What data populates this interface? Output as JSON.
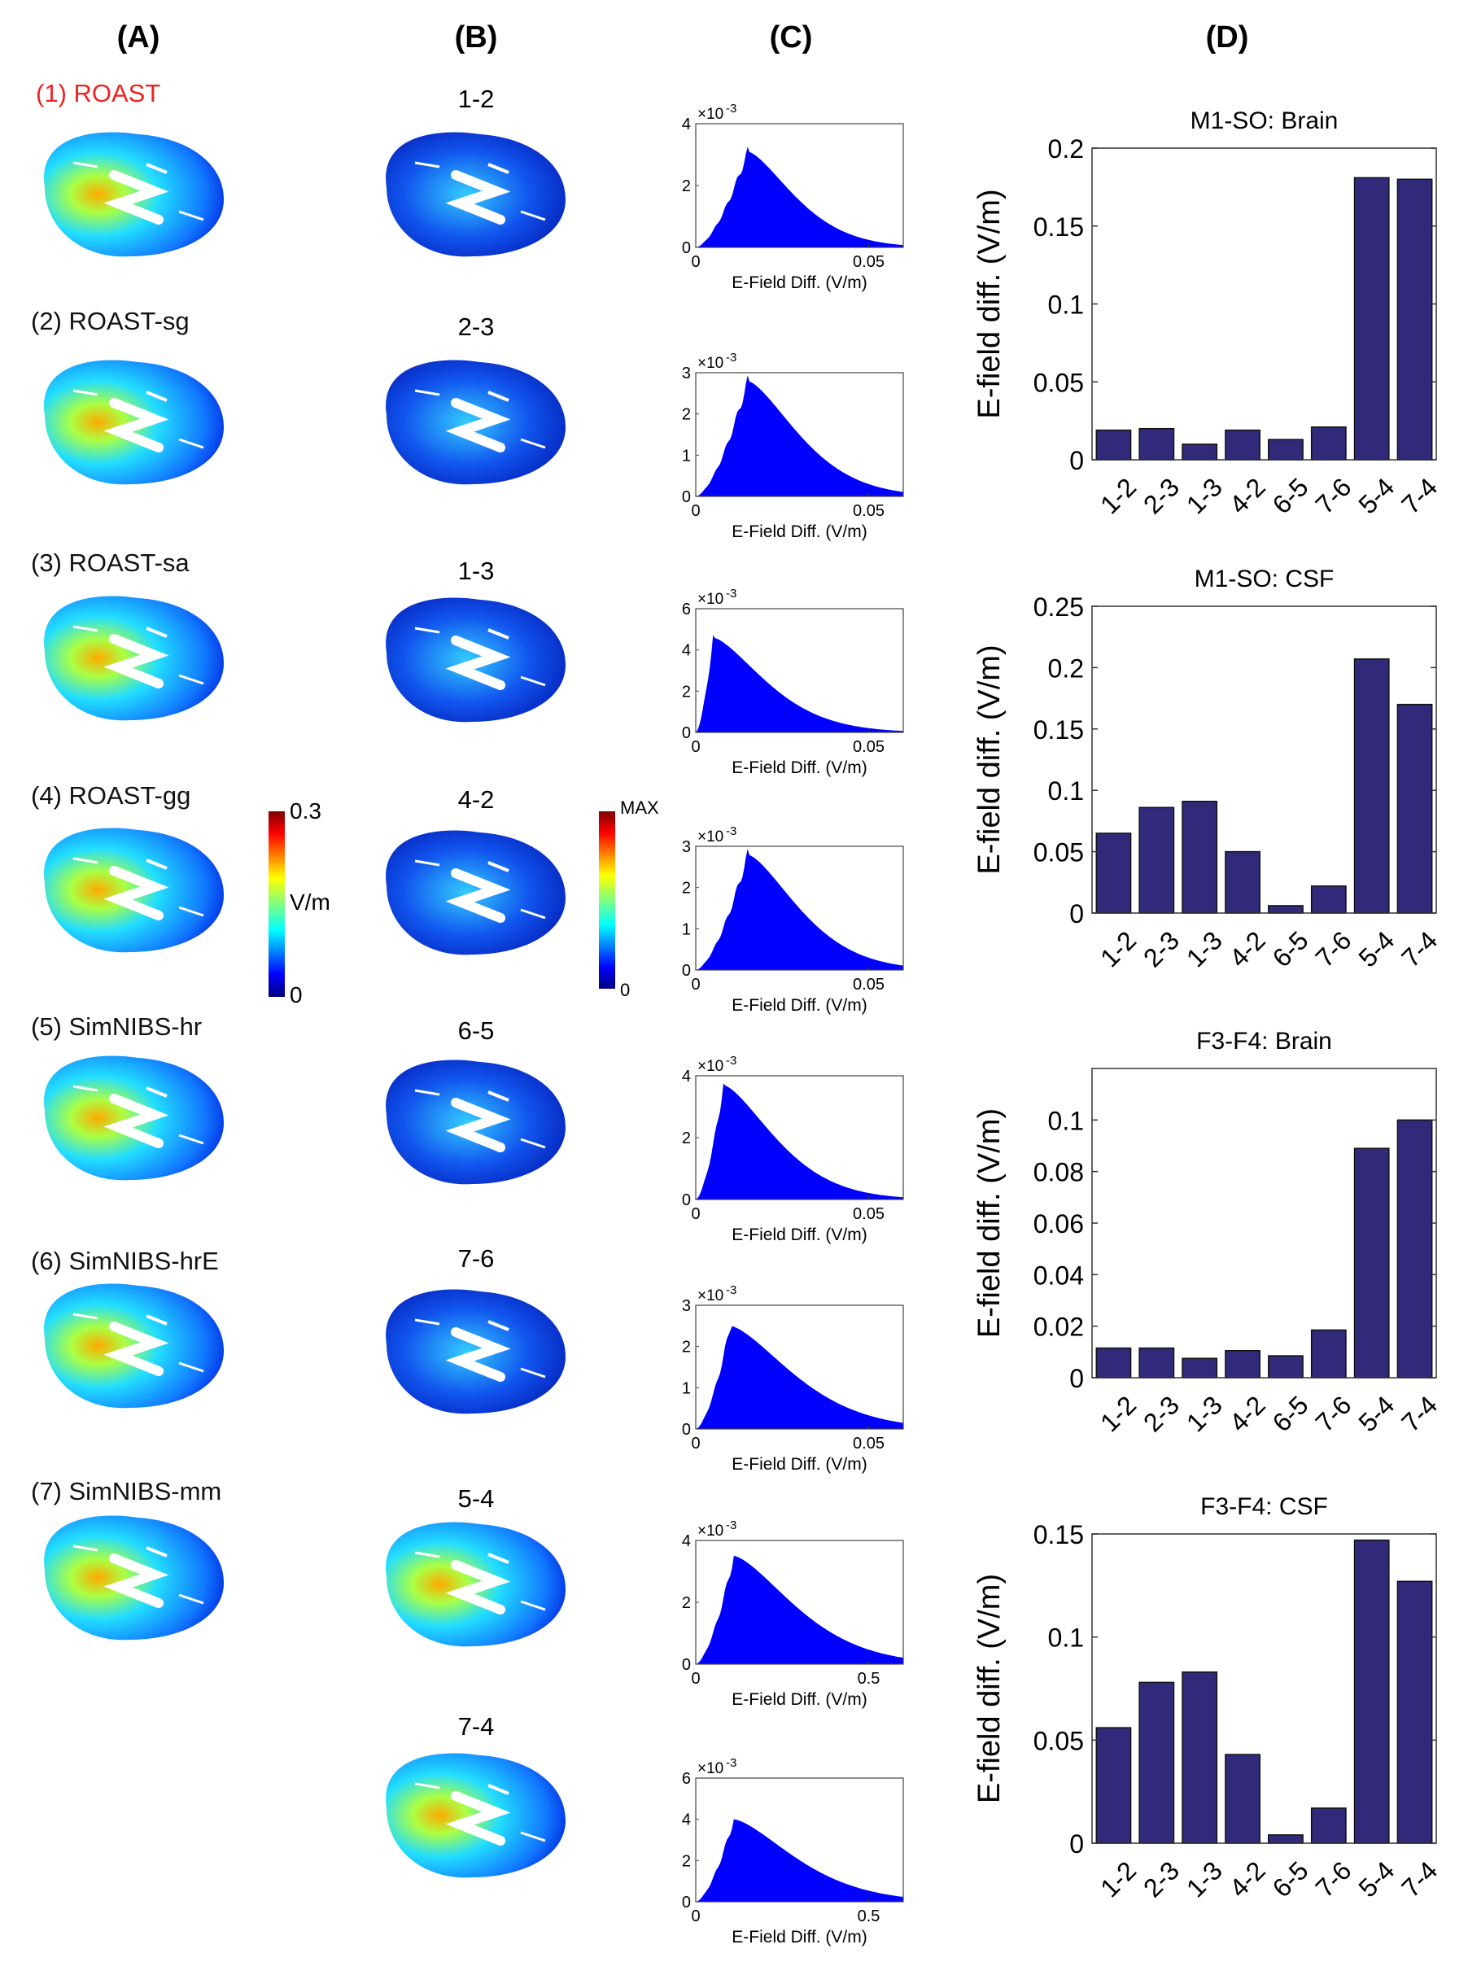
{
  "panel_letters": [
    "(A)",
    "(B)",
    "(C)",
    "(D)"
  ],
  "models": [
    {
      "label": "(1) ROAST",
      "color": "#ee2222"
    },
    {
      "label": "(2) ROAST-sg",
      "color": "#111111"
    },
    {
      "label": "(3) ROAST-sa",
      "color": "#111111"
    },
    {
      "label": "(4) ROAST-gg",
      "color": "#111111"
    },
    {
      "label": "(5) SimNIBS-hr",
      "color": "#111111"
    },
    {
      "label": "(6) SimNIBS-hrE",
      "color": "#111111"
    },
    {
      "label": "(7) SimNIBS-mm",
      "color": "#111111"
    }
  ],
  "pairs": [
    "1-2",
    "2-3",
    "1-3",
    "4-2",
    "6-5",
    "7-6",
    "5-4",
    "7-4"
  ],
  "colorbar_a": {
    "max": "0.3",
    "unit": "V/m",
    "min": "0"
  },
  "colorbar_b": {
    "max": "MAX",
    "min": "0"
  },
  "chart_data": [
    {
      "type": "bar",
      "title": "M1-SO: Brain",
      "ylabel": "E-field diff. (V/m)",
      "categories": [
        "1-2",
        "2-3",
        "1-3",
        "4-2",
        "6-5",
        "7-6",
        "5-4",
        "7-4"
      ],
      "values": [
        0.019,
        0.02,
        0.01,
        0.019,
        0.013,
        0.021,
        0.181,
        0.18
      ],
      "ylim": [
        0,
        0.2
      ],
      "yticks": [
        0,
        0.05,
        0.1,
        0.15,
        0.2
      ],
      "ytick_labels": [
        "0",
        "0.05",
        "0.1",
        "0.15",
        "0.2"
      ],
      "bar_color": "#312a7a"
    },
    {
      "type": "bar",
      "title": "M1-SO: CSF",
      "ylabel": "E-field diff. (V/m)",
      "categories": [
        "1-2",
        "2-3",
        "1-3",
        "4-2",
        "6-5",
        "7-6",
        "5-4",
        "7-4"
      ],
      "values": [
        0.065,
        0.086,
        0.091,
        0.05,
        0.006,
        0.022,
        0.207,
        0.17
      ],
      "ylim": [
        0,
        0.25
      ],
      "yticks": [
        0,
        0.05,
        0.1,
        0.15,
        0.2,
        0.25
      ],
      "ytick_labels": [
        "0",
        "0.05",
        "0.1",
        "0.15",
        "0.2",
        "0.25"
      ],
      "bar_color": "#312a7a"
    },
    {
      "type": "bar",
      "title": "F3-F4: Brain",
      "ylabel": "E-field diff. (V/m)",
      "categories": [
        "1-2",
        "2-3",
        "1-3",
        "4-2",
        "6-5",
        "7-6",
        "5-4",
        "7-4"
      ],
      "values": [
        0.0115,
        0.0115,
        0.0075,
        0.0105,
        0.0085,
        0.0185,
        0.089,
        0.1
      ],
      "ylim": [
        0,
        0.12
      ],
      "yticks": [
        0,
        0.02,
        0.04,
        0.06,
        0.08,
        0.1
      ],
      "ytick_labels": [
        "0",
        "0.02",
        "0.04",
        "0.06",
        "0.08",
        "0.1"
      ],
      "bar_color": "#312a7a"
    },
    {
      "type": "bar",
      "title": "F3-F4: CSF",
      "ylabel": "E-field diff. (V/m)",
      "categories": [
        "1-2",
        "2-3",
        "1-3",
        "4-2",
        "6-5",
        "7-6",
        "5-4",
        "7-4"
      ],
      "values": [
        0.056,
        0.078,
        0.083,
        0.043,
        0.004,
        0.017,
        0.147,
        0.127
      ],
      "ylim": [
        0,
        0.15
      ],
      "yticks": [
        0,
        0.05,
        0.1,
        0.15
      ],
      "ytick_labels": [
        "0",
        "0.05",
        "0.1",
        "0.15"
      ],
      "bar_color": "#312a7a"
    },
    {
      "type": "area",
      "name": "hist-1-2",
      "xlabel": "E-Field Diff. (V/m)",
      "xlim": [
        0,
        0.06
      ],
      "xticks": [
        0,
        0.05
      ],
      "xtick_labels": [
        "0",
        "0.05"
      ],
      "ylim": [
        0,
        4
      ],
      "yticks": [
        0,
        2,
        4
      ],
      "ytick_labels": [
        "0",
        "2",
        "4"
      ],
      "yscale": "×10",
      "yexp": "-3",
      "peak_x": 0.015,
      "peak_y": 3.1,
      "tail": 2.4
    },
    {
      "type": "area",
      "name": "hist-2-3",
      "xlabel": "E-Field Diff. (V/m)",
      "xlim": [
        0,
        0.06
      ],
      "xticks": [
        0,
        0.05
      ],
      "xtick_labels": [
        "0",
        "0.05"
      ],
      "ylim": [
        0,
        3
      ],
      "yticks": [
        0,
        1,
        2,
        3
      ],
      "ytick_labels": [
        "0",
        "1",
        "2",
        "3"
      ],
      "yscale": "×10",
      "yexp": "-3",
      "peak_x": 0.015,
      "peak_y": 2.8,
      "tail": 2.2
    },
    {
      "type": "area",
      "name": "hist-1-3",
      "xlabel": "E-Field Diff. (V/m)",
      "xlim": [
        0,
        0.06
      ],
      "xticks": [
        0,
        0.05
      ],
      "xtick_labels": [
        "0",
        "0.05"
      ],
      "ylim": [
        0,
        6
      ],
      "yticks": [
        0,
        2,
        4,
        6
      ],
      "ytick_labels": [
        "0",
        "2",
        "4",
        "6"
      ],
      "yscale": "×10",
      "yexp": "-3",
      "peak_x": 0.005,
      "peak_y": 4.6,
      "tail": 2.6
    },
    {
      "type": "area",
      "name": "hist-4-2",
      "xlabel": "E-Field Diff. (V/m)",
      "xlim": [
        0,
        0.06
      ],
      "xticks": [
        0,
        0.05
      ],
      "xtick_labels": [
        "0",
        "0.05"
      ],
      "ylim": [
        0,
        3
      ],
      "yticks": [
        0,
        1,
        2,
        3
      ],
      "ytick_labels": [
        "0",
        "1",
        "2",
        "3"
      ],
      "yscale": "×10",
      "yexp": "-3",
      "peak_x": 0.015,
      "peak_y": 2.8,
      "tail": 2.2
    },
    {
      "type": "area",
      "name": "hist-6-5",
      "xlabel": "E-Field Diff. (V/m)",
      "xlim": [
        0,
        0.06
      ],
      "xticks": [
        0,
        0.05
      ],
      "xtick_labels": [
        "0",
        "0.05"
      ],
      "ylim": [
        0,
        4
      ],
      "yticks": [
        0,
        2,
        4
      ],
      "ytick_labels": [
        "0",
        "2",
        "4"
      ],
      "yscale": "×10",
      "yexp": "-3",
      "peak_x": 0.008,
      "peak_y": 3.7,
      "tail": 2.5
    },
    {
      "type": "area",
      "name": "hist-7-6",
      "xlabel": "E-Field Diff. (V/m)",
      "xlim": [
        0,
        0.06
      ],
      "xticks": [
        0,
        0.05
      ],
      "xtick_labels": [
        "0",
        "0.05"
      ],
      "ylim": [
        0,
        3
      ],
      "yticks": [
        0,
        1,
        2,
        3
      ],
      "ytick_labels": [
        "0",
        "1",
        "2",
        "3"
      ],
      "yscale": "×10",
      "yexp": "-3",
      "peak_x": 0.01,
      "peak_y": 2.5,
      "tail": 2.0
    },
    {
      "type": "area",
      "name": "hist-5-4",
      "xlabel": "E-Field Diff. (V/m)",
      "xlim": [
        0,
        0.6
      ],
      "xticks": [
        0,
        0.5
      ],
      "xtick_labels": [
        "0",
        "0.5"
      ],
      "ylim": [
        0,
        4
      ],
      "yticks": [
        0,
        2,
        4
      ],
      "ytick_labels": [
        "0",
        "2",
        "4"
      ],
      "yscale": "×10",
      "yexp": "-3",
      "peak_x": 0.11,
      "peak_y": 3.5,
      "tail": 2.0
    },
    {
      "type": "area",
      "name": "hist-7-4",
      "xlabel": "E-Field Diff. (V/m)",
      "xlim": [
        0,
        0.6
      ],
      "xticks": [
        0,
        0.5
      ],
      "xtick_labels": [
        "0",
        "0.5"
      ],
      "ylim": [
        0,
        6
      ],
      "yticks": [
        0,
        2,
        4,
        6
      ],
      "ytick_labels": [
        "0",
        "2",
        "4",
        "6"
      ],
      "yscale": "×10",
      "yexp": "-3",
      "peak_x": 0.11,
      "peak_y": 4.0,
      "tail": 2.0
    }
  ]
}
